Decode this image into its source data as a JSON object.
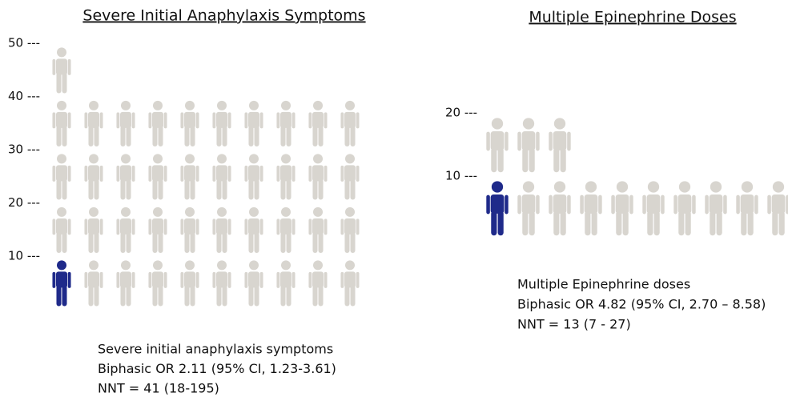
{
  "chart_data": [
    {
      "type": "icon-array",
      "title": "Severe Initial Anaphylaxis Symptoms",
      "total": 41,
      "highlighted": 1,
      "per_row": 10,
      "color": "#d8d5cf",
      "highlight_color": "#1f2a8a",
      "ylim": [
        0,
        50
      ],
      "yticks": [
        {
          "value": 10,
          "label": "10 ---"
        },
        {
          "value": 20,
          "label": "20 ---"
        },
        {
          "value": 30,
          "label": "30 ---"
        },
        {
          "value": 40,
          "label": "40 ---"
        },
        {
          "value": 50,
          "label": "50 ---"
        }
      ],
      "notes": [
        "Severe initial anaphylaxis symptoms",
        "Biphasic OR 2.11 (95% CI, 1.23-3.61)",
        "NNT = 41 (18-195)"
      ]
    },
    {
      "type": "icon-array",
      "title": "Multiple Epinephrine Doses",
      "total": 13,
      "highlighted": 1,
      "per_row": 10,
      "color": "#d8d5cf",
      "highlight_color": "#1f2a8a",
      "ylim": [
        0,
        20
      ],
      "yticks": [
        {
          "value": 10,
          "label": "10 ---"
        },
        {
          "value": 20,
          "label": "20 ---"
        }
      ],
      "notes": [
        "Multiple Epinephrine doses",
        "Biphasic OR 4.82 (95% CI, 2.70 – 8.58)",
        "NNT = 13 (7 - 27)"
      ]
    }
  ]
}
